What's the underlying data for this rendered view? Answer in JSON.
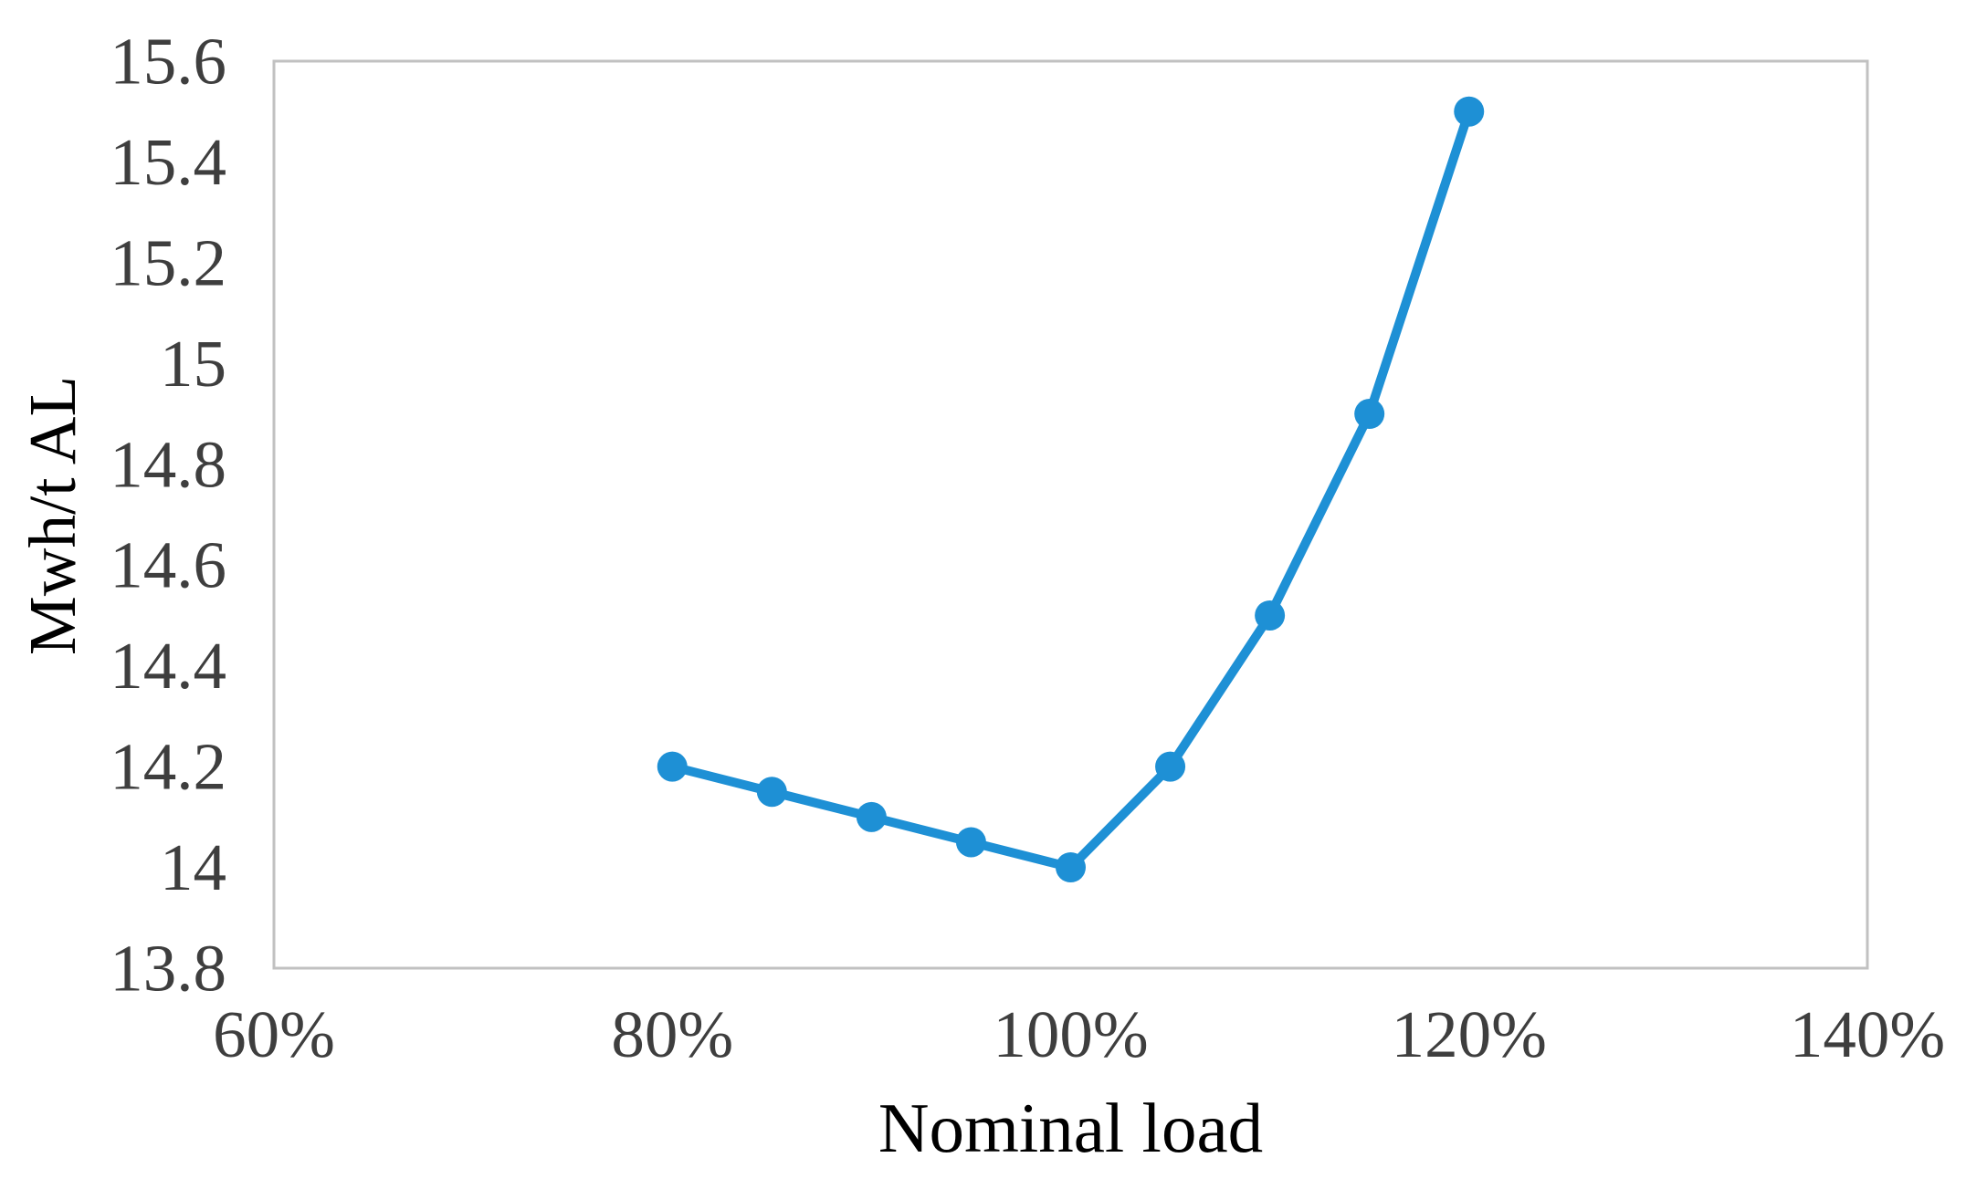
{
  "figure": {
    "background_color": "#ffffff"
  },
  "chart_data": {
    "type": "line",
    "title": "",
    "xlabel": "Nominal load",
    "ylabel": "Mwh/t AL",
    "x_percent": [
      80,
      85,
      90,
      95,
      100,
      105,
      110,
      115,
      120
    ],
    "y": [
      14.2,
      14.15,
      14.1,
      14.05,
      14.0,
      14.2,
      14.5,
      14.9,
      15.5
    ],
    "xlim_percent": [
      60,
      140
    ],
    "ylim": [
      13.8,
      15.6
    ],
    "x_ticks_percent": [
      60,
      80,
      100,
      120,
      140
    ],
    "x_tick_labels": [
      "60%",
      "80%",
      "100%",
      "120%",
      "140%"
    ],
    "y_ticks": [
      13.8,
      14,
      14.2,
      14.4,
      14.6,
      14.8,
      15,
      15.2,
      15.4,
      15.6
    ],
    "y_tick_labels": [
      "13.8",
      "14",
      "14.2",
      "14.4",
      "14.6",
      "14.8",
      "15",
      "15.2",
      "15.4",
      "15.6"
    ],
    "grid": false,
    "legend": false,
    "line_color": "#1e90d5",
    "marker": "circle",
    "marker_color": "#1e90d5",
    "plot_border_color": "#c1c1c1",
    "text_color": "#3e3e3e"
  }
}
